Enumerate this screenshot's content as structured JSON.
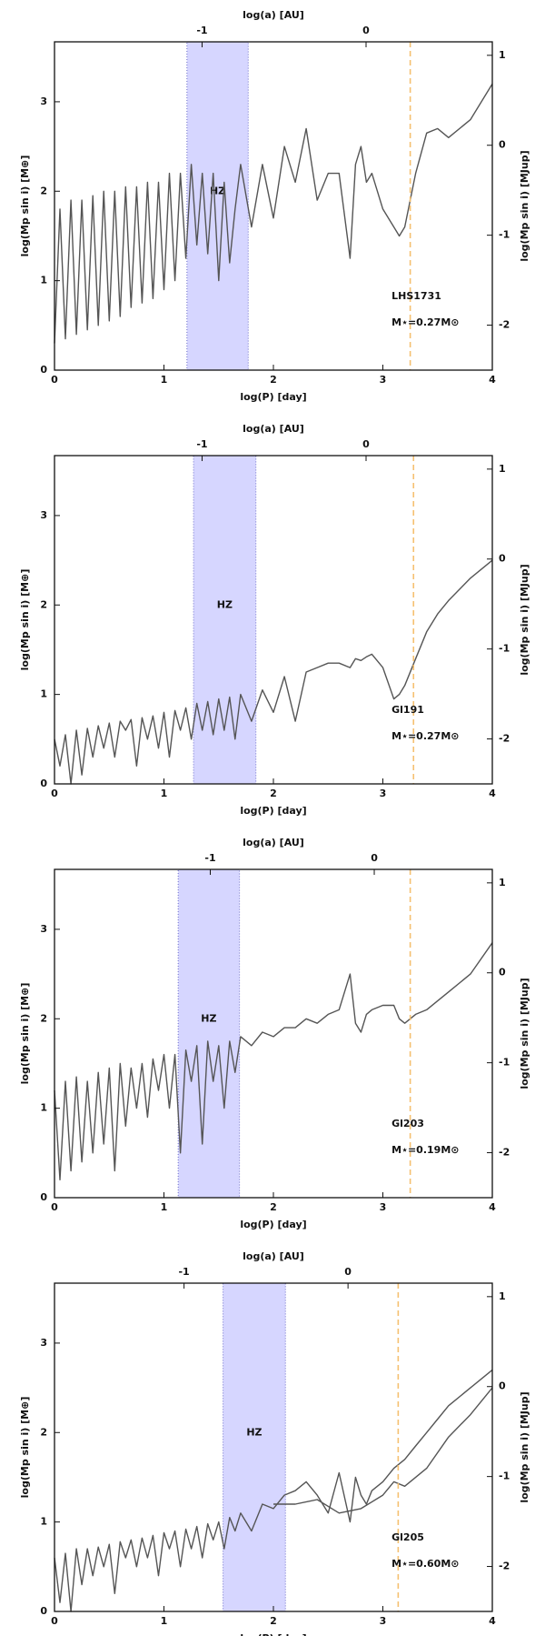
{
  "chart_data": [
    {
      "type": "line",
      "x_label": "log(P) [day]",
      "x2_label": "log(a) [AU]",
      "y_label": "log(Mp sin i) [M⊕]",
      "y2_label": "log(Mp sin i) [MJup]",
      "xlim": [
        0,
        4
      ],
      "xticks": [
        0,
        1,
        2,
        3,
        4
      ],
      "ylim": [
        0,
        3.67
      ],
      "yticks": [
        0,
        1,
        2,
        3
      ],
      "x2lim": [
        -1.9,
        0.77
      ],
      "x2ticks": [
        -1,
        0
      ],
      "y2lim": [
        -2.5,
        1.15
      ],
      "y2ticks": [
        -2,
        -1,
        0,
        1
      ],
      "hz": [
        1.21,
        1.77
      ],
      "hz_label": "HZ",
      "hz_color": "#d6d6ff",
      "snow_line": 3.25,
      "snow_color": "#f5c070",
      "star_name": "LHS1731",
      "mass_label": "M⋆=0.27M⊙",
      "x": [
        0,
        0.05,
        0.1,
        0.15,
        0.2,
        0.25,
        0.3,
        0.35,
        0.4,
        0.45,
        0.5,
        0.55,
        0.6,
        0.65,
        0.7,
        0.75,
        0.8,
        0.85,
        0.9,
        0.95,
        1.0,
        1.05,
        1.1,
        1.15,
        1.2,
        1.25,
        1.3,
        1.35,
        1.4,
        1.45,
        1.5,
        1.55,
        1.6,
        1.65,
        1.7,
        1.8,
        1.9,
        2.0,
        2.1,
        2.2,
        2.3,
        2.4,
        2.5,
        2.6,
        2.7,
        2.75,
        2.8,
        2.85,
        2.9,
        3.0,
        3.1,
        3.15,
        3.2,
        3.3,
        3.4,
        3.5,
        3.6,
        3.8,
        4.0
      ],
      "series": [
        {
          "color": "#555555",
          "values": [
            0.3,
            1.8,
            0.35,
            1.9,
            0.4,
            1.9,
            0.45,
            1.95,
            0.5,
            2.0,
            0.55,
            2.0,
            0.6,
            2.05,
            0.7,
            2.05,
            0.75,
            2.1,
            0.8,
            2.1,
            0.9,
            2.2,
            1.0,
            2.2,
            1.25,
            2.3,
            1.4,
            2.2,
            1.3,
            2.2,
            1.0,
            2.1,
            1.2,
            1.8,
            2.3,
            1.6,
            2.3,
            1.7,
            2.5,
            2.1,
            2.7,
            1.9,
            2.2,
            2.2,
            1.25,
            2.3,
            2.5,
            2.1,
            2.2,
            1.8,
            1.6,
            1.5,
            1.6,
            2.2,
            2.65,
            2.7,
            2.6,
            2.8,
            3.2
          ]
        }
      ]
    },
    {
      "type": "line",
      "x_label": "log(P) [day]",
      "x2_label": "log(a) [AU]",
      "y_label": "log(Mp sin i) [M⊕]",
      "y2_label": "log(Mp sin i) [MJup]",
      "xlim": [
        0,
        4
      ],
      "xticks": [
        0,
        1,
        2,
        3,
        4
      ],
      "ylim": [
        0,
        3.67
      ],
      "yticks": [
        0,
        1,
        2,
        3
      ],
      "x2lim": [
        -1.9,
        0.77
      ],
      "x2ticks": [
        -1,
        0
      ],
      "y2lim": [
        -2.5,
        1.15
      ],
      "y2ticks": [
        -2,
        -1,
        0,
        1
      ],
      "hz": [
        1.27,
        1.84
      ],
      "hz_label": "HZ",
      "hz_color": "#d6d6ff",
      "snow_line": 3.28,
      "snow_color": "#f5c070",
      "star_name": "Gl191",
      "mass_label": "M⋆=0.27M⊙",
      "x": [
        0,
        0.05,
        0.1,
        0.15,
        0.2,
        0.25,
        0.3,
        0.35,
        0.4,
        0.45,
        0.5,
        0.55,
        0.6,
        0.65,
        0.7,
        0.75,
        0.8,
        0.85,
        0.9,
        0.95,
        1.0,
        1.05,
        1.1,
        1.15,
        1.2,
        1.25,
        1.3,
        1.35,
        1.4,
        1.45,
        1.5,
        1.55,
        1.6,
        1.65,
        1.7,
        1.8,
        1.9,
        2.0,
        2.1,
        2.2,
        2.3,
        2.4,
        2.5,
        2.6,
        2.7,
        2.75,
        2.8,
        2.85,
        2.9,
        3.0,
        3.1,
        3.15,
        3.2,
        3.3,
        3.4,
        3.5,
        3.6,
        3.8,
        4.0
      ],
      "series": [
        {
          "color": "#555555",
          "values": [
            0.5,
            0.2,
            0.55,
            0.0,
            0.6,
            0.1,
            0.62,
            0.3,
            0.65,
            0.4,
            0.68,
            0.3,
            0.7,
            0.6,
            0.72,
            0.2,
            0.74,
            0.5,
            0.76,
            0.4,
            0.8,
            0.3,
            0.82,
            0.6,
            0.85,
            0.5,
            0.9,
            0.6,
            0.92,
            0.55,
            0.95,
            0.6,
            0.97,
            0.5,
            1.0,
            0.7,
            1.05,
            0.8,
            1.2,
            0.7,
            1.25,
            1.3,
            1.35,
            1.35,
            1.3,
            1.4,
            1.38,
            1.42,
            1.45,
            1.3,
            0.95,
            1.0,
            1.1,
            1.4,
            1.7,
            1.9,
            2.05,
            2.3,
            2.5
          ]
        }
      ]
    },
    {
      "type": "line",
      "x_label": "log(P) [day]",
      "x2_label": "log(a) [AU]",
      "y_label": "log(Mp sin i) [M⊕]",
      "y2_label": "log(Mp sin i) [MJup]",
      "xlim": [
        0,
        4
      ],
      "xticks": [
        0,
        1,
        2,
        3,
        4
      ],
      "ylim": [
        0,
        3.67
      ],
      "yticks": [
        0,
        1,
        2,
        3
      ],
      "x2lim": [
        -1.95,
        0.72
      ],
      "x2ticks": [
        -1,
        0
      ],
      "y2lim": [
        -2.5,
        1.15
      ],
      "y2ticks": [
        -2,
        -1,
        0,
        1
      ],
      "hz": [
        1.13,
        1.69
      ],
      "hz_label": "HZ",
      "hz_color": "#d6d6ff",
      "snow_line": 3.25,
      "snow_color": "#f5c070",
      "star_name": "Gl203",
      "mass_label": "M⋆=0.19M⊙",
      "x": [
        0,
        0.05,
        0.1,
        0.15,
        0.2,
        0.25,
        0.3,
        0.35,
        0.4,
        0.45,
        0.5,
        0.55,
        0.6,
        0.65,
        0.7,
        0.75,
        0.8,
        0.85,
        0.9,
        0.95,
        1.0,
        1.05,
        1.1,
        1.15,
        1.2,
        1.25,
        1.3,
        1.35,
        1.4,
        1.45,
        1.5,
        1.55,
        1.6,
        1.65,
        1.7,
        1.8,
        1.9,
        2.0,
        2.1,
        2.2,
        2.3,
        2.4,
        2.5,
        2.6,
        2.7,
        2.75,
        2.8,
        2.85,
        2.9,
        3.0,
        3.1,
        3.15,
        3.2,
        3.3,
        3.4,
        3.5,
        3.6,
        3.8,
        4.0
      ],
      "series": [
        {
          "color": "#555555",
          "values": [
            1.2,
            0.2,
            1.3,
            0.3,
            1.35,
            0.4,
            1.3,
            0.5,
            1.4,
            0.6,
            1.45,
            0.3,
            1.5,
            0.8,
            1.45,
            1.0,
            1.5,
            0.9,
            1.55,
            1.2,
            1.6,
            1.0,
            1.6,
            0.5,
            1.65,
            1.3,
            1.7,
            0.6,
            1.75,
            1.3,
            1.7,
            1.0,
            1.75,
            1.4,
            1.8,
            1.7,
            1.85,
            1.8,
            1.9,
            1.9,
            2.0,
            1.95,
            2.05,
            2.1,
            2.5,
            1.95,
            1.85,
            2.05,
            2.1,
            2.15,
            2.15,
            2.0,
            1.95,
            2.05,
            2.1,
            2.2,
            2.3,
            2.5,
            2.85
          ]
        }
      ]
    },
    {
      "type": "line",
      "x_label": "log(P) [day]",
      "x2_label": "log(a) [AU]",
      "y_label": "log(Mp sin i) [M⊕]",
      "y2_label": "log(Mp sin i) [MJup]",
      "xlim": [
        0,
        4
      ],
      "xticks": [
        0,
        1,
        2,
        3,
        4
      ],
      "ylim": [
        0,
        3.67
      ],
      "yticks": [
        0,
        1,
        2,
        3
      ],
      "x2lim": [
        -1.79,
        0.88
      ],
      "x2ticks": [
        -1,
        0
      ],
      "y2lim": [
        -2.5,
        1.15
      ],
      "y2ticks": [
        -2,
        -1,
        0,
        1
      ],
      "hz": [
        1.54,
        2.11
      ],
      "hz_label": "HZ",
      "hz_color": "#d6d6ff",
      "snow_line": 3.14,
      "snow_color": "#f5c070",
      "star_name": "Gl205",
      "mass_label": "M⋆=0.60M⊙",
      "x": [
        0,
        0.05,
        0.1,
        0.15,
        0.2,
        0.25,
        0.3,
        0.35,
        0.4,
        0.45,
        0.5,
        0.55,
        0.6,
        0.65,
        0.7,
        0.75,
        0.8,
        0.85,
        0.9,
        0.95,
        1.0,
        1.05,
        1.1,
        1.15,
        1.2,
        1.25,
        1.3,
        1.35,
        1.4,
        1.45,
        1.5,
        1.55,
        1.6,
        1.65,
        1.7,
        1.8,
        1.9,
        2.0,
        2.1,
        2.2,
        2.3,
        2.4,
        2.5,
        2.6,
        2.7,
        2.75,
        2.8,
        2.85,
        2.9,
        3.0,
        3.1,
        3.15,
        3.2,
        3.3,
        3.4,
        3.5,
        3.6,
        3.8,
        4.0
      ],
      "series": [
        {
          "color": "#555555",
          "values": [
            0.6,
            0.1,
            0.65,
            0.0,
            0.7,
            0.3,
            0.7,
            0.4,
            0.72,
            0.5,
            0.75,
            0.2,
            0.78,
            0.6,
            0.8,
            0.5,
            0.82,
            0.6,
            0.85,
            0.4,
            0.88,
            0.7,
            0.9,
            0.5,
            0.92,
            0.7,
            0.95,
            0.6,
            0.98,
            0.8,
            1.0,
            0.7,
            1.05,
            0.9,
            1.1,
            0.9,
            1.2,
            1.15,
            1.3,
            1.35,
            1.45,
            1.3,
            1.1,
            1.55,
            1.0,
            1.5,
            1.3,
            1.2,
            1.35,
            1.45,
            1.6,
            1.65,
            1.7,
            1.85,
            2.0,
            2.15,
            2.3,
            2.5,
            2.7
          ]
        },
        {
          "color": "#555555",
          "x": [
            2.0,
            2.2,
            2.4,
            2.6,
            2.8,
            3.0,
            3.1,
            3.2,
            3.4,
            3.6,
            3.8,
            4.0
          ],
          "values": [
            1.2,
            1.2,
            1.25,
            1.1,
            1.15,
            1.3,
            1.45,
            1.4,
            1.6,
            1.95,
            2.2,
            2.5
          ]
        }
      ]
    }
  ]
}
